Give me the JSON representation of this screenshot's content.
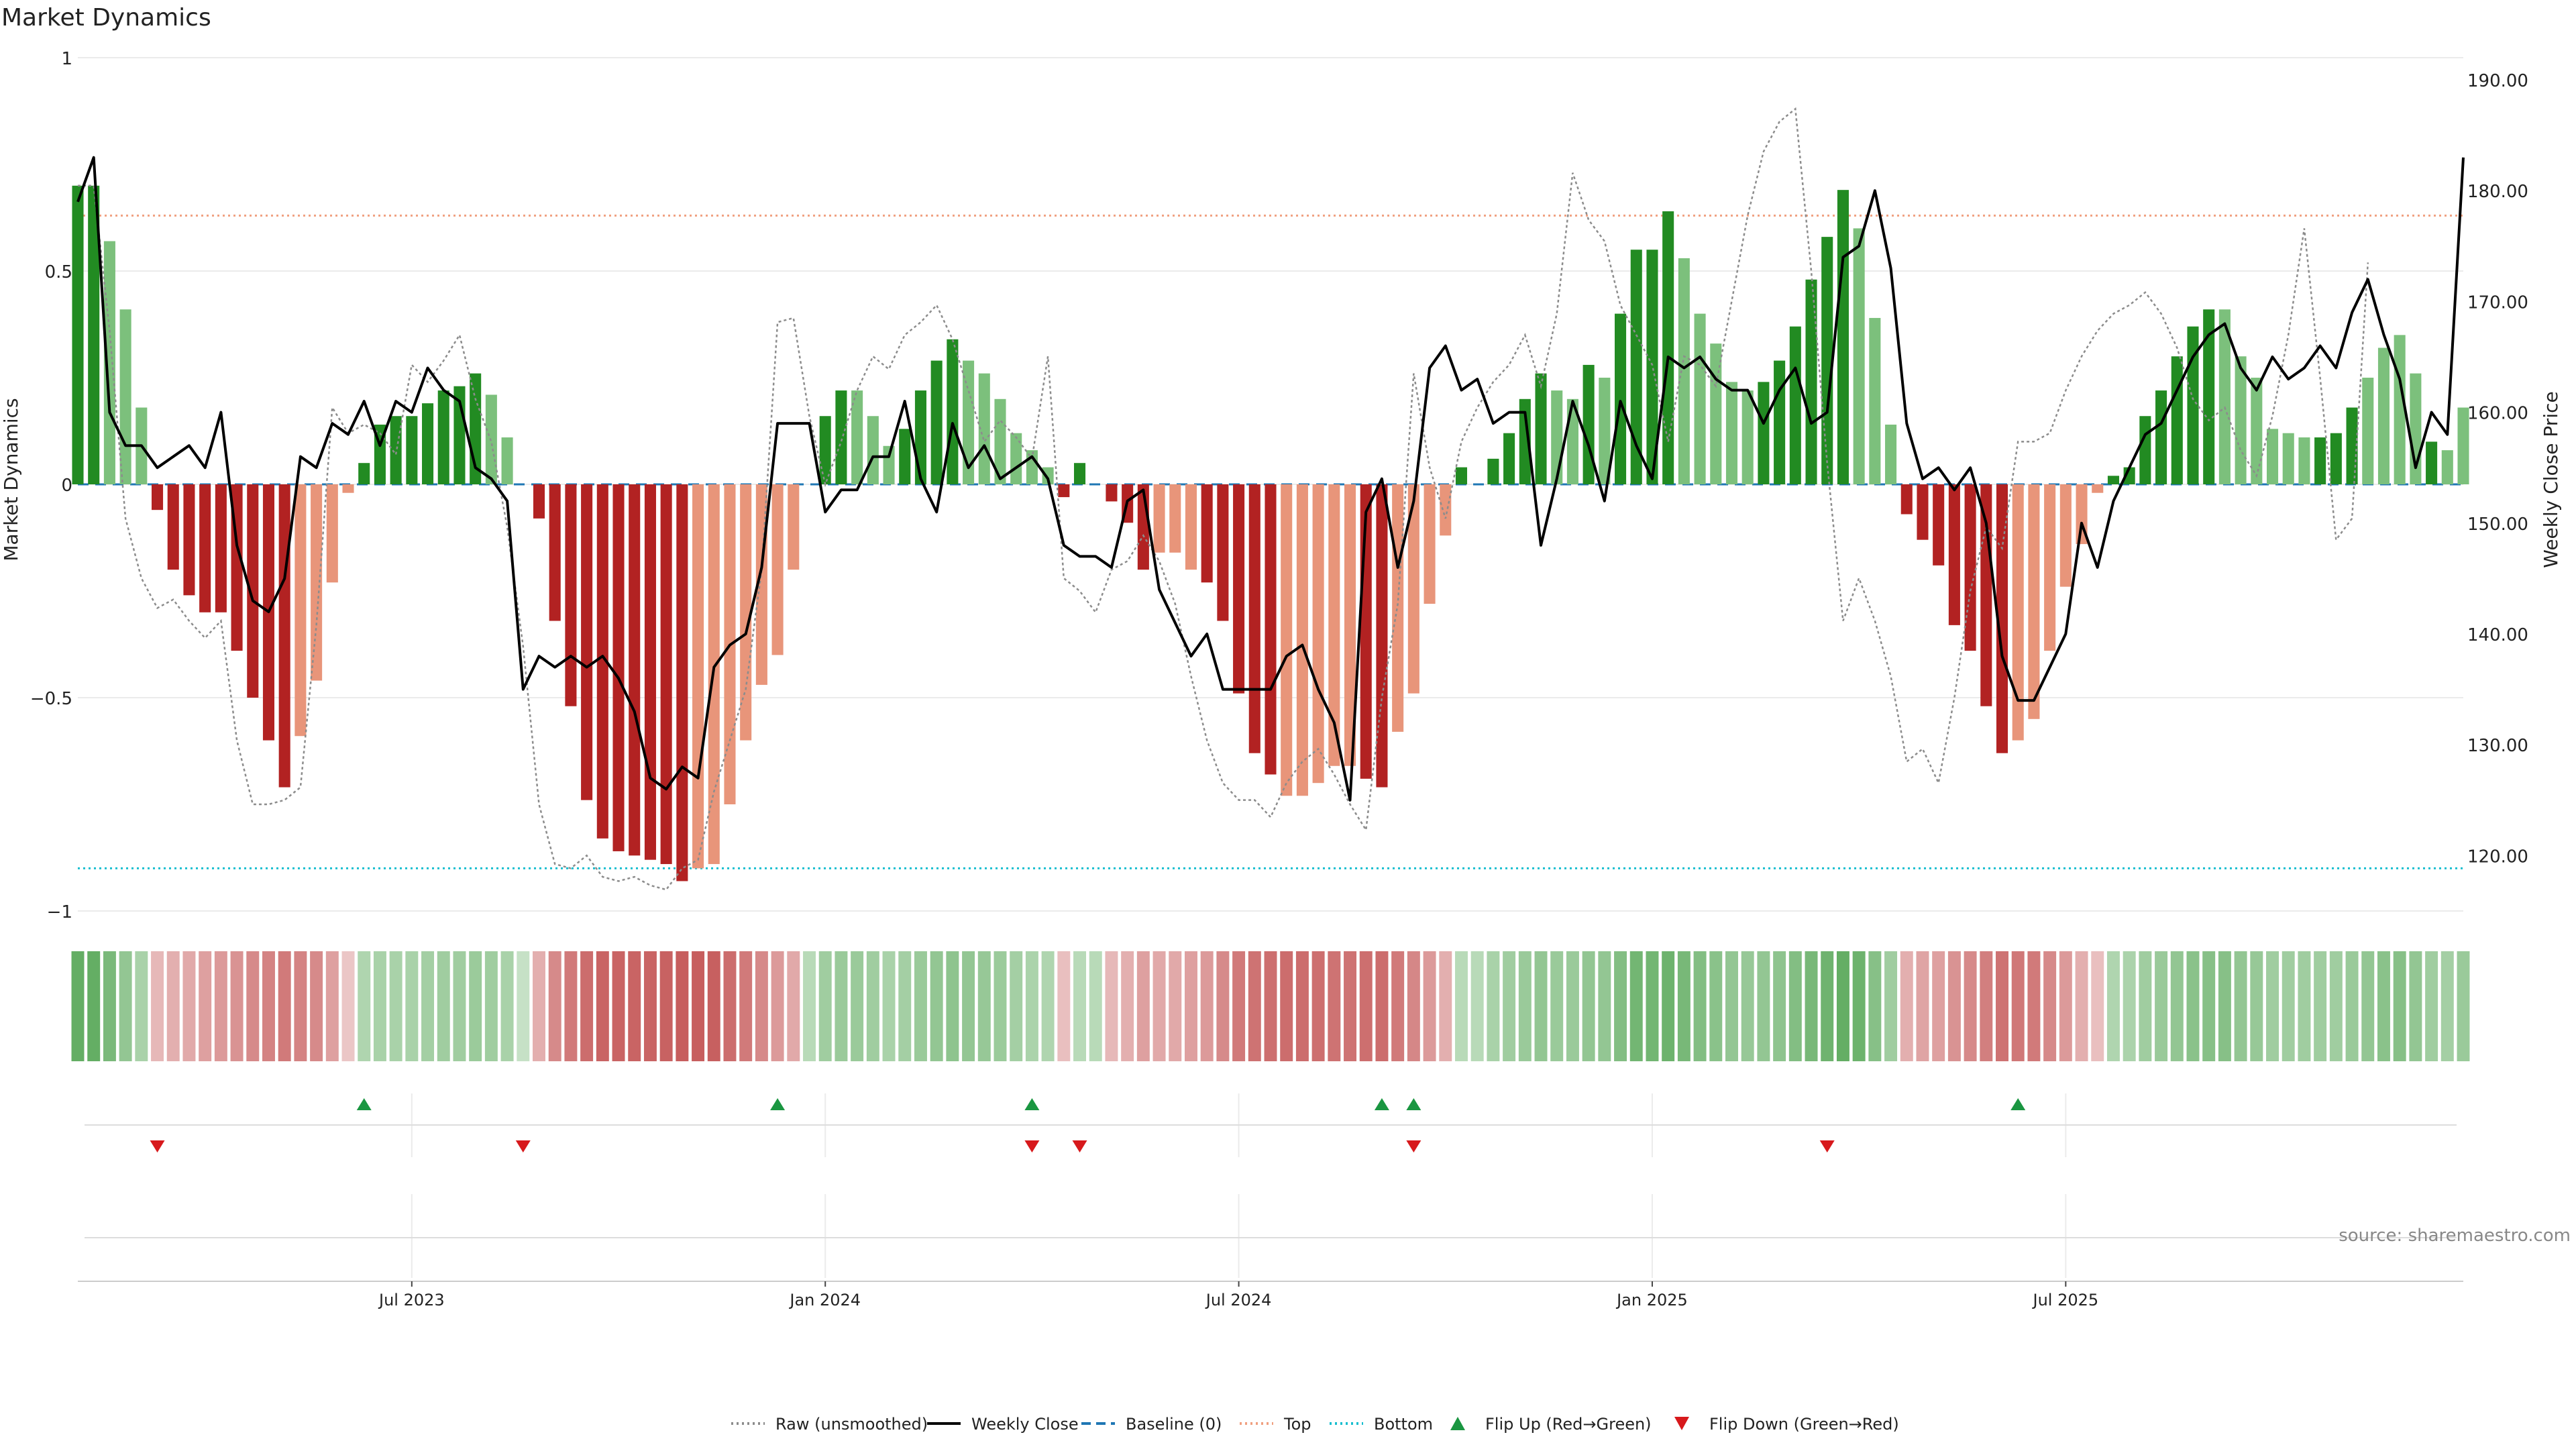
{
  "title": "Market Dynamics",
  "source_note": "source: sharemaestro.com",
  "colors": {
    "strong_green": "#228B22",
    "light_green": "#7CC07C",
    "strong_red": "#B22222",
    "light_red": "#E8957A",
    "close_line": "#000000",
    "raw_line": "#8C8C8C",
    "baseline": "#1F77B4",
    "top_line": "#F0A080",
    "bottom_line": "#17BECF",
    "flip_up": "#1A9641",
    "flip_down": "#D7191C",
    "grid": "#EBEBEB"
  },
  "chart_data": {
    "type": "bar",
    "title": "Market Dynamics",
    "ylabel_left": "Market Dynamics",
    "ylabel_right": "Weekly Close Price",
    "ylim_left": [
      -1,
      1
    ],
    "ylim_right": [
      115,
      192
    ],
    "yticks_left": [
      1,
      0.5,
      0,
      -0.5,
      -1
    ],
    "yticks_left_labels": [
      "1",
      "0.5",
      "0",
      "−0.5",
      "−1"
    ],
    "yticks_right": [
      190,
      180,
      170,
      160,
      150,
      140,
      130,
      120
    ],
    "yticks_right_labels": [
      "190.00",
      "180.00",
      "170.00",
      "160.00",
      "150.00",
      "140.00",
      "130.00",
      "120.00"
    ],
    "top_threshold": 0.63,
    "bottom_threshold": -0.9,
    "baseline": 0,
    "x_ticks": [
      {
        "label": "Jul 2023",
        "week": 21
      },
      {
        "label": "Jan 2024",
        "week": 47
      },
      {
        "label": "Jul 2024",
        "week": 73
      },
      {
        "label": "Jan 2025",
        "week": 99
      },
      {
        "label": "Jul 2025",
        "week": 125
      }
    ],
    "bars": [
      0.7,
      0.7,
      0.57,
      0.41,
      0.18,
      -0.06,
      -0.2,
      -0.26,
      -0.3,
      -0.3,
      -0.39,
      -0.5,
      -0.6,
      -0.71,
      -0.59,
      -0.46,
      -0.23,
      -0.02,
      0.05,
      0.14,
      0.16,
      0.16,
      0.19,
      0.22,
      0.23,
      0.26,
      0.21,
      0.11,
      0.0,
      -0.08,
      -0.32,
      -0.52,
      -0.74,
      -0.83,
      -0.86,
      -0.87,
      -0.88,
      -0.89,
      -0.93,
      -0.9,
      -0.89,
      -0.75,
      -0.6,
      -0.47,
      -0.4,
      -0.2,
      0.0,
      0.16,
      0.22,
      0.22,
      0.16,
      0.09,
      0.13,
      0.22,
      0.29,
      0.34,
      0.29,
      0.26,
      0.2,
      0.12,
      0.08,
      0.04,
      -0.03,
      0.05,
      0.0,
      -0.04,
      -0.09,
      -0.2,
      -0.16,
      -0.16,
      -0.2,
      -0.23,
      -0.32,
      -0.49,
      -0.63,
      -0.68,
      -0.73,
      -0.73,
      -0.7,
      -0.66,
      -0.66,
      -0.69,
      -0.71,
      -0.58,
      -0.49,
      -0.28,
      -0.12,
      0.04,
      0.0,
      0.06,
      0.12,
      0.2,
      0.26,
      0.22,
      0.2,
      0.28,
      0.25,
      0.4,
      0.55,
      0.55,
      0.64,
      0.53,
      0.4,
      0.33,
      0.24,
      0.22,
      0.24,
      0.29,
      0.37,
      0.48,
      0.58,
      0.69,
      0.6,
      0.39,
      0.14,
      -0.07,
      -0.13,
      -0.19,
      -0.33,
      -0.39,
      -0.52,
      -0.63,
      -0.6,
      -0.55,
      -0.39,
      -0.24,
      -0.14,
      -0.02,
      0.02,
      0.04,
      0.16,
      0.22,
      0.3,
      0.37,
      0.41,
      0.41,
      0.3,
      0.25,
      0.13,
      0.12,
      0.11,
      0.11,
      0.12,
      0.18,
      0.25,
      0.32,
      0.35,
      0.26,
      0.1,
      0.08,
      0.18
    ],
    "bar_strength": [
      "s",
      "s",
      "w",
      "w",
      "w",
      "s",
      "s",
      "s",
      "s",
      "s",
      "s",
      "s",
      "s",
      "s",
      "w",
      "w",
      "w",
      "w",
      "s",
      "s",
      "s",
      "s",
      "s",
      "s",
      "s",
      "s",
      "w",
      "w",
      "w",
      "s",
      "s",
      "s",
      "s",
      "s",
      "s",
      "s",
      "s",
      "s",
      "s",
      "w",
      "w",
      "w",
      "w",
      "w",
      "w",
      "w",
      "w",
      "s",
      "s",
      "w",
      "w",
      "w",
      "s",
      "s",
      "s",
      "s",
      "w",
      "w",
      "w",
      "w",
      "w",
      "w",
      "s",
      "s",
      "w",
      "s",
      "s",
      "s",
      "w",
      "w",
      "w",
      "s",
      "s",
      "s",
      "s",
      "s",
      "w",
      "w",
      "w",
      "w",
      "w",
      "s",
      "s",
      "w",
      "w",
      "w",
      "w",
      "s",
      "s",
      "s",
      "s",
      "s",
      "s",
      "w",
      "w",
      "s",
      "w",
      "s",
      "s",
      "s",
      "s",
      "w",
      "w",
      "w",
      "w",
      "w",
      "s",
      "s",
      "s",
      "s",
      "s",
      "s",
      "w",
      "w",
      "w",
      "s",
      "s",
      "s",
      "s",
      "s",
      "s",
      "s",
      "w",
      "w",
      "w",
      "w",
      "w",
      "w",
      "s",
      "s",
      "s",
      "s",
      "s",
      "s",
      "s",
      "w",
      "w",
      "w",
      "w",
      "w",
      "w",
      "s",
      "s",
      "s",
      "w",
      "w",
      "w",
      "w",
      "s"
    ],
    "raw": [
      0.7,
      0.7,
      0.36,
      -0.08,
      -0.22,
      -0.29,
      -0.27,
      -0.32,
      -0.36,
      -0.32,
      -0.6,
      -0.75,
      -0.75,
      -0.74,
      -0.71,
      -0.33,
      0.18,
      0.12,
      0.14,
      0.12,
      0.07,
      0.28,
      0.24,
      0.29,
      0.35,
      0.2,
      0.1,
      -0.1,
      -0.38,
      -0.75,
      -0.89,
      -0.9,
      -0.87,
      -0.92,
      -0.93,
      -0.92,
      -0.94,
      -0.95,
      -0.9,
      -0.88,
      -0.72,
      -0.6,
      -0.48,
      -0.2,
      0.38,
      0.39,
      0.16,
      0.0,
      0.1,
      0.22,
      0.3,
      0.27,
      0.35,
      0.38,
      0.42,
      0.34,
      0.22,
      0.1,
      0.15,
      0.11,
      0.06,
      0.3,
      -0.22,
      -0.25,
      -0.3,
      -0.2,
      -0.18,
      -0.12,
      -0.18,
      -0.28,
      -0.45,
      -0.6,
      -0.7,
      -0.74,
      -0.74,
      -0.78,
      -0.7,
      -0.65,
      -0.62,
      -0.68,
      -0.75,
      -0.81,
      -0.5,
      -0.28,
      0.26,
      0.04,
      -0.08,
      0.1,
      0.18,
      0.24,
      0.28,
      0.35,
      0.23,
      0.4,
      0.73,
      0.62,
      0.57,
      0.42,
      0.35,
      0.28,
      0.1,
      0.3,
      0.28,
      0.23,
      0.43,
      0.63,
      0.78,
      0.85,
      0.88,
      0.5,
      0.05,
      -0.32,
      -0.22,
      -0.32,
      -0.45,
      -0.65,
      -0.62,
      -0.7,
      -0.5,
      -0.25,
      -0.1,
      -0.15,
      0.1,
      0.1,
      0.12,
      0.22,
      0.3,
      0.36,
      0.4,
      0.42,
      0.45,
      0.4,
      0.32,
      0.2,
      0.15,
      0.18,
      0.08,
      0.02,
      0.16,
      0.35,
      0.6,
      0.25,
      -0.13,
      -0.08,
      0.52
    ],
    "close": [
      179,
      183,
      160,
      157,
      157,
      155,
      156,
      157,
      155,
      160,
      148,
      143,
      142,
      145,
      156,
      155,
      159,
      158,
      161,
      157,
      161,
      160,
      164,
      162,
      161,
      155,
      154,
      152,
      135,
      138,
      137,
      138,
      137,
      138,
      136,
      133,
      127,
      126,
      128,
      127,
      137,
      139,
      140,
      146,
      159,
      159,
      159,
      151,
      153,
      153,
      156,
      156,
      161,
      154,
      151,
      159,
      155,
      157,
      154,
      155,
      156,
      154,
      148,
      147,
      147,
      146,
      152,
      153,
      144,
      141,
      138,
      140,
      135,
      135,
      135,
      135,
      138,
      139,
      135,
      132,
      125,
      151,
      154,
      146,
      152,
      164,
      166,
      162,
      163,
      159,
      160,
      160,
      148,
      154,
      161,
      157,
      152,
      161,
      157,
      154,
      165,
      164,
      165,
      163,
      162,
      162,
      159,
      162,
      164,
      159,
      160,
      174,
      175,
      180,
      173,
      159,
      154,
      155,
      153,
      155,
      150,
      138,
      134,
      134,
      137,
      140,
      150,
      146,
      152,
      155,
      158,
      159,
      162,
      165,
      167,
      168,
      164,
      162,
      165,
      163,
      164,
      166,
      164,
      169,
      172,
      167,
      163,
      155,
      160,
      158,
      183
    ],
    "flip_up_weeks": [
      18,
      44,
      60,
      82,
      84,
      122
    ],
    "flip_down_weeks": [
      5,
      28,
      60,
      63,
      84,
      110
    ],
    "heat_intensity": [
      0.85,
      0.85,
      0.7,
      0.55,
      0.4,
      0.3,
      0.35,
      0.4,
      0.45,
      0.5,
      0.55,
      0.6,
      0.65,
      0.7,
      0.65,
      0.6,
      0.45,
      0.2,
      0.35,
      0.4,
      0.4,
      0.4,
      0.42,
      0.45,
      0.45,
      0.48,
      0.45,
      0.4,
      0.2,
      0.35,
      0.6,
      0.7,
      0.8,
      0.85,
      0.85,
      0.85,
      0.86,
      0.87,
      0.9,
      0.9,
      0.88,
      0.8,
      0.7,
      0.6,
      0.5,
      0.4,
      0.3,
      0.45,
      0.5,
      0.5,
      0.45,
      0.4,
      0.42,
      0.5,
      0.55,
      0.58,
      0.55,
      0.52,
      0.48,
      0.42,
      0.38,
      0.35,
      0.25,
      0.3,
      0.3,
      0.3,
      0.35,
      0.45,
      0.4,
      0.4,
      0.45,
      0.5,
      0.6,
      0.7,
      0.75,
      0.78,
      0.8,
      0.8,
      0.78,
      0.75,
      0.75,
      0.78,
      0.8,
      0.7,
      0.62,
      0.5,
      0.35,
      0.3,
      0.3,
      0.4,
      0.45,
      0.5,
      0.55,
      0.5,
      0.5,
      0.55,
      0.55,
      0.65,
      0.75,
      0.75,
      0.8,
      0.72,
      0.65,
      0.6,
      0.55,
      0.52,
      0.55,
      0.58,
      0.65,
      0.72,
      0.78,
      0.85,
      0.8,
      0.62,
      0.45,
      0.35,
      0.42,
      0.45,
      0.55,
      0.6,
      0.68,
      0.75,
      0.72,
      0.7,
      0.6,
      0.5,
      0.35,
      0.25,
      0.35,
      0.38,
      0.45,
      0.5,
      0.55,
      0.6,
      0.62,
      0.62,
      0.55,
      0.52,
      0.45,
      0.45,
      0.45,
      0.45,
      0.45,
      0.5,
      0.55,
      0.6,
      0.62,
      0.55,
      0.45,
      0.42,
      0.5
    ]
  },
  "legend": [
    {
      "label": "Raw (unsmoothed)",
      "kind": "dotted-line",
      "color": "#8C8C8C"
    },
    {
      "label": "Weekly Close",
      "kind": "line",
      "color": "#000000"
    },
    {
      "label": "Baseline (0)",
      "kind": "dashed-line",
      "color": "#1F77B4"
    },
    {
      "label": "Top",
      "kind": "dotted-line",
      "color": "#F0A080"
    },
    {
      "label": "Bottom",
      "kind": "dotted-line",
      "color": "#17BECF"
    },
    {
      "label": "Flip Up (Red→Green)",
      "kind": "triangle-up",
      "color": "#1A9641"
    },
    {
      "label": "Flip Down (Green→Red)",
      "kind": "triangle-down",
      "color": "#D7191C"
    }
  ]
}
